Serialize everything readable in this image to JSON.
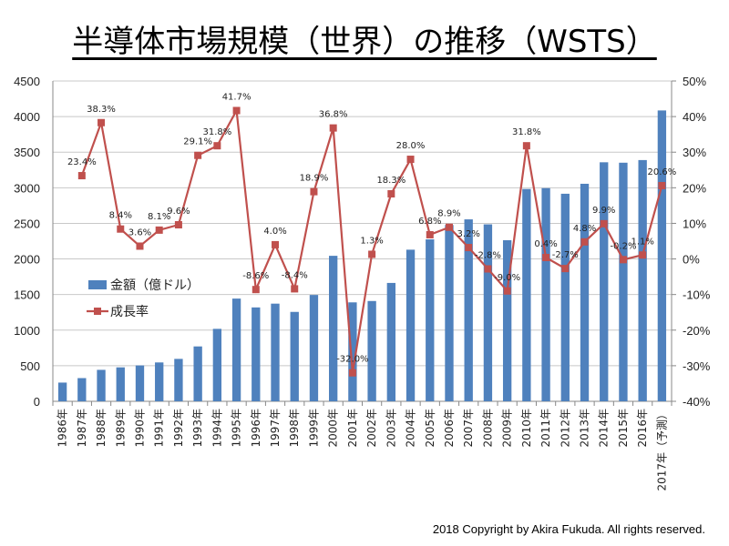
{
  "title": "半導体市場規模（世界）の推移（WSTS）",
  "copyright": "2018 Copyright by Akira Fukuda. All rights reserved.",
  "chart_data": {
    "type": "bar+line",
    "title": "半導体市場規模（世界）の推移（WSTS）",
    "categories": [
      "1986年",
      "1987年",
      "1988年",
      "1989年",
      "1990年",
      "1991年",
      "1992年",
      "1993年",
      "1994年",
      "1995年",
      "1996年",
      "1997年",
      "1998年",
      "1999年",
      "2000年",
      "2001年",
      "2002年",
      "2003年",
      "2004年",
      "2005年",
      "2006年",
      "2007年",
      "2008年",
      "2009年",
      "2010年",
      "2011年",
      "2012年",
      "2013年",
      "2014年",
      "2015年",
      "2016年",
      "2017年（予測）"
    ],
    "series": [
      {
        "name": "金額（億ドル）",
        "type": "bar",
        "axis": "left",
        "color": "#4f81bd",
        "values": [
          263,
          326,
          442,
          477,
          504,
          546,
          596,
          771,
          1018,
          1443,
          1319,
          1372,
          1256,
          1494,
          2044,
          1390,
          1409,
          1663,
          2130,
          2275,
          2477,
          2556,
          2486,
          2263,
          2983,
          2995,
          2916,
          3056,
          3358,
          3352,
          3389,
          4086
        ]
      },
      {
        "name": "成長率",
        "type": "line",
        "axis": "right",
        "color": "#c0504d",
        "marker": "square",
        "values": [
          null,
          23.4,
          38.3,
          8.4,
          3.6,
          8.1,
          9.6,
          29.1,
          31.8,
          41.7,
          -8.6,
          4.0,
          -8.4,
          18.9,
          36.8,
          -32.0,
          1.3,
          18.3,
          28.0,
          6.8,
          8.9,
          3.2,
          -2.8,
          -9.0,
          31.8,
          0.4,
          -2.7,
          4.8,
          9.9,
          -0.2,
          1.1,
          20.6
        ],
        "labels": [
          "",
          "23.4%",
          "38.3%",
          "8.4%",
          "3.6%",
          "8.1%",
          "9.6%",
          "29.1%",
          "31.8%",
          "41.7%",
          "-8.6%",
          "4.0%",
          "-8.4%",
          "18.9%",
          "36.8%",
          "-32.0%",
          "1.3%",
          "18.3%",
          "28.0%",
          "6.8%",
          "8.9%",
          "3.2%",
          "-2.8%",
          "-9.0%",
          "31.8%",
          "0.4%",
          "-2.7%",
          "4.8%",
          "9.9%",
          "-0.2%",
          "1.1%",
          "20.6%"
        ]
      }
    ],
    "y_left": {
      "range": [
        0,
        4500
      ],
      "ticks": [
        "0",
        "500",
        "1000",
        "1500",
        "2000",
        "2500",
        "3000",
        "3500",
        "4000",
        "4500"
      ]
    },
    "y_right": {
      "range": [
        -40,
        50
      ],
      "ticks": [
        "-40%",
        "-30%",
        "-20%",
        "-10%",
        "0%",
        "10%",
        "20%",
        "30%",
        "40%",
        "50%"
      ]
    },
    "grid": true,
    "legend": "center-left"
  }
}
